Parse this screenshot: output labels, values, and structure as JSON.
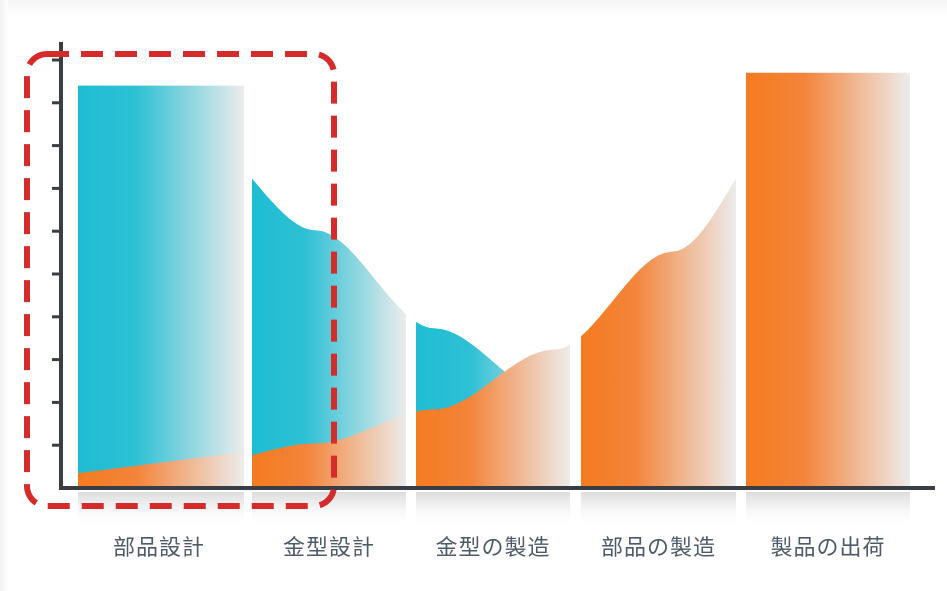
{
  "stages": [
    {
      "label": "部品設計",
      "blue": 0.94,
      "orange": 0.05,
      "highlighted": true
    },
    {
      "label": "金型設計",
      "blue": 0.74,
      "orange": 0.1,
      "highlighted": true
    },
    {
      "label": "金型の製造",
      "blue": 0.45,
      "orange": 0.27,
      "highlighted": false
    },
    {
      "label": "部品の製造",
      "blue": 0.21,
      "orange": 0.51,
      "highlighted": false
    },
    {
      "label": "製品の出荷",
      "blue": 0.08,
      "orange": 0.97,
      "highlighted": false
    }
  ],
  "colors": {
    "blue": "#1ebdd3",
    "orange": "#f47b20",
    "fade": "#ececec",
    "axis": "#3a3d44",
    "highlight": "#d62b2b",
    "label": "#4d5a6a"
  }
}
